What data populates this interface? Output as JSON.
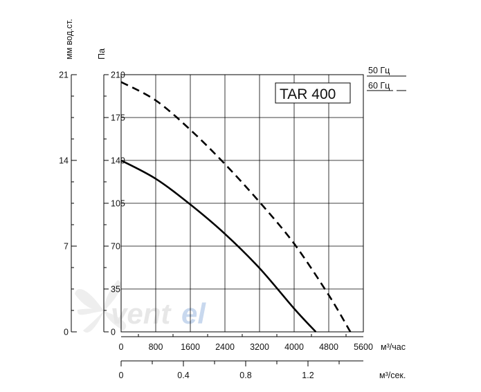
{
  "chart_data": {
    "type": "line",
    "model_label": "TAR 400",
    "watermark": {
      "brand_main": "vent",
      "brand_accent": "el",
      "main_color": "#e7e7e7",
      "accent_color": "#c8d8ee"
    },
    "x_primary": {
      "unit": "м³/час",
      "ticks": [
        0,
        800,
        1600,
        2400,
        3200,
        4000,
        4800,
        5600
      ],
      "range": [
        0,
        5600
      ]
    },
    "x_secondary": {
      "unit": "м³/сек.",
      "ticks": [
        "0",
        "0.4",
        "0.8",
        "1.2"
      ],
      "tick_values": [
        0,
        0.4,
        0.8,
        1.2
      ],
      "range": [
        0,
        1.5556
      ]
    },
    "y_primary": {
      "unit": "Па",
      "ticks": [
        0,
        35,
        70,
        105,
        140,
        175,
        210
      ],
      "range": [
        0,
        210
      ]
    },
    "y_secondary": {
      "unit": "мм вод.ст.",
      "ticks": [
        0,
        7,
        14,
        21
      ],
      "range": [
        0,
        21
      ]
    },
    "legend": [
      {
        "label": "50 Гц",
        "style": "solid"
      },
      {
        "label": "60 Гц",
        "style": "dashed"
      }
    ],
    "series": [
      {
        "name": "50 Гц",
        "style": "solid",
        "color": "#000000",
        "x": [
          0,
          800,
          1600,
          2400,
          3200,
          4000,
          4500
        ],
        "y": [
          140,
          125,
          104,
          80,
          52,
          19,
          0
        ]
      },
      {
        "name": "60 Гц",
        "style": "dashed",
        "color": "#000000",
        "x": [
          0,
          800,
          1600,
          2400,
          3200,
          4000,
          4800,
          5300
        ],
        "y": [
          204,
          189,
          165,
          137,
          106,
          72,
          30,
          0
        ]
      }
    ],
    "grid": true
  }
}
